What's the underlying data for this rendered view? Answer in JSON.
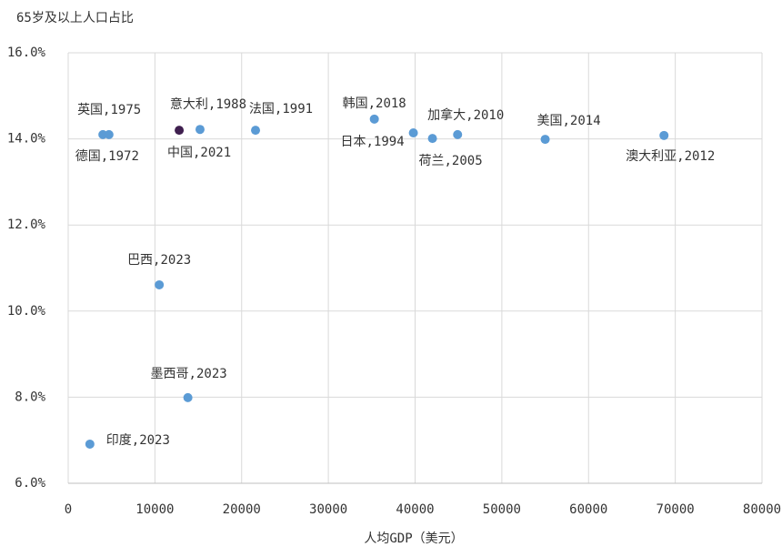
{
  "chart_data": {
    "type": "scatter",
    "title": "65岁及以上人口占比",
    "x_label": "人均GDP（美元）",
    "labels": [
      "英国,1975",
      "德国,1972",
      "意大利,1988",
      "中国,2021",
      "法国,1991",
      "韩国,2018",
      "日本,1994",
      "荷兰,2005",
      "加拿大,2010",
      "美国,2014",
      "澳大利亚,2012",
      "巴西,2023",
      "墨西哥,2023",
      "印度,2023"
    ],
    "x": [
      4000,
      4700,
      15200,
      12800,
      21600,
      35300,
      39800,
      42000,
      44900,
      55000,
      68700,
      10500,
      13800,
      2500
    ],
    "values": [
      14.1,
      14.1,
      14.22,
      14.2,
      14.2,
      14.46,
      14.14,
      14.01,
      14.1,
      13.99,
      14.08,
      10.61,
      7.99,
      6.91
    ],
    "colors": [
      "#5b9bd5",
      "#5b9bd5",
      "#5b9bd5",
      "#3f1f4f",
      "#5b9bd5",
      "#5b9bd5",
      "#5b9bd5",
      "#5b9bd5",
      "#5b9bd5",
      "#5b9bd5",
      "#5b9bd5",
      "#5b9bd5",
      "#5b9bd5",
      "#5b9bd5"
    ],
    "xlim": [
      0,
      80000
    ],
    "xticks": [
      0,
      10000,
      20000,
      30000,
      40000,
      50000,
      60000,
      70000,
      80000
    ],
    "ylim": [
      6,
      16
    ],
    "yticks": [
      {
        "value": 6,
        "label": "6.0%"
      },
      {
        "value": 8,
        "label": "8.0%"
      },
      {
        "value": 10,
        "label": "10.0%"
      },
      {
        "value": 12,
        "label": "12.0%"
      },
      {
        "value": 14,
        "label": "14.0%"
      },
      {
        "value": 16,
        "label": "16.0%"
      }
    ],
    "grid": true
  }
}
